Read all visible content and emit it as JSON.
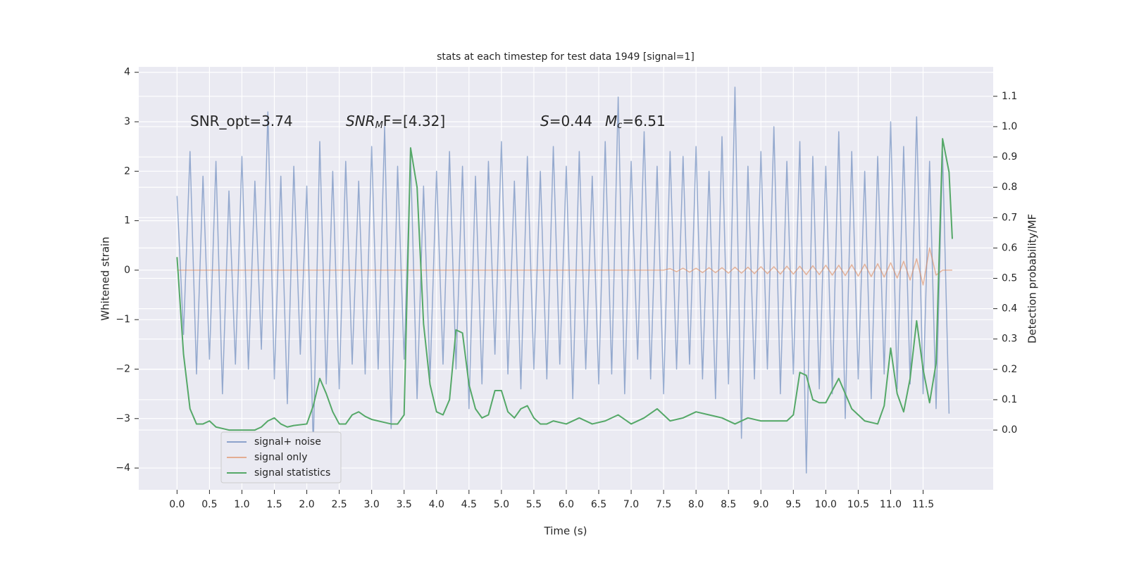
{
  "chart_data": {
    "type": "line",
    "title": "stats at each timestep for test data 1949 [signal=1]",
    "xlabel": "Time (s)",
    "ylabel": "Whitened strain",
    "y2label": "Detection probability/MF",
    "xlim": [
      -0.59,
      12.58
    ],
    "ylim": [
      -4.44,
      4.11
    ],
    "y2lim": [
      -0.197,
      1.197
    ],
    "xticks": [
      {
        "value": 0,
        "label": "0.0"
      },
      0.5,
      {
        "value": 1,
        "label": "1.0"
      },
      1.5,
      {
        "value": 2,
        "label": "2.0"
      },
      2.5,
      {
        "value": 3,
        "label": "3.0"
      },
      3.5,
      {
        "value": 4,
        "label": "4.0"
      },
      4.5,
      {
        "value": 5,
        "label": "5.0"
      },
      5.5,
      {
        "value": 6,
        "label": "6.0"
      },
      6.5,
      {
        "value": 7,
        "label": "7.0"
      },
      7.5,
      {
        "value": 8,
        "label": "8.0"
      },
      8.5,
      {
        "value": 9,
        "label": "9.0"
      },
      9.5,
      {
        "value": 10,
        "label": "10.0"
      },
      10.5,
      {
        "value": 11,
        "label": "11.0"
      },
      11.5
    ],
    "yticks": [
      {
        "value": -4,
        "label": "−4"
      },
      {
        "value": -3,
        "label": "−3"
      },
      {
        "value": -2,
        "label": "−2"
      },
      {
        "value": -1,
        "label": "−1"
      },
      0,
      1,
      2,
      3,
      4
    ],
    "y2ticks": [
      {
        "value": 0,
        "label": "0.0"
      },
      0.1,
      0.2,
      0.3,
      0.4,
      0.5,
      0.6,
      0.7,
      0.8,
      0.9,
      {
        "value": 1,
        "label": "1.0"
      },
      1.1
    ],
    "grid": true,
    "legend_loc": "lower left",
    "annotations": [
      [
        {
          "text": "SNR_opt=3.74",
          "style": "normal"
        }
      ],
      [
        {
          "text": "SNR",
          "style": "italic"
        },
        {
          "text": "M",
          "style": "sub"
        },
        {
          "text": "F=[4.32]",
          "style": "normal"
        }
      ],
      [
        {
          "text": "S",
          "style": "italic"
        },
        {
          "text": "=0.44",
          "style": "normal"
        }
      ],
      [
        {
          "text": "M",
          "style": "italic"
        },
        {
          "text": "c",
          "style": "sub"
        },
        {
          "text": "=6.51",
          "style": "normal"
        }
      ]
    ],
    "series": [
      {
        "name": "signal+ noise",
        "color": "#4c72b0",
        "axis": "y",
        "x": [
          0,
          0.1,
          0.2,
          0.3,
          0.4,
          0.5,
          0.6,
          0.7,
          0.8,
          0.9,
          1,
          1.1,
          1.2,
          1.3,
          1.4,
          1.5,
          1.6,
          1.7,
          1.8,
          1.9,
          2,
          2.1,
          2.2,
          2.3,
          2.4,
          2.5,
          2.6,
          2.7,
          2.8,
          2.9,
          3,
          3.1,
          3.2,
          3.3,
          3.4,
          3.5,
          3.6,
          3.7,
          3.8,
          3.9,
          4,
          4.1,
          4.2,
          4.3,
          4.4,
          4.5,
          4.6,
          4.7,
          4.8,
          4.9,
          5,
          5.1,
          5.2,
          5.3,
          5.4,
          5.5,
          5.6,
          5.7,
          5.8,
          5.9,
          6,
          6.1,
          6.2,
          6.3,
          6.4,
          6.5,
          6.6,
          6.7,
          6.8,
          6.9,
          7,
          7.1,
          7.2,
          7.3,
          7.4,
          7.5,
          7.6,
          7.7,
          7.8,
          7.9,
          8,
          8.1,
          8.2,
          8.3,
          8.4,
          8.5,
          8.6,
          8.7,
          8.8,
          8.9,
          9,
          9.1,
          9.2,
          9.3,
          9.4,
          9.5,
          9.6,
          9.7,
          9.8,
          9.9,
          10,
          10.1,
          10.2,
          10.3,
          10.4,
          10.5,
          10.6,
          10.7,
          10.8,
          10.9,
          11,
          11.1,
          11.2,
          11.3,
          11.4,
          11.5,
          11.6,
          11.7,
          11.8,
          11.9
        ],
        "values": [
          1.5,
          -1.3,
          2.4,
          -2.1,
          1.9,
          -1.8,
          2.2,
          -2.5,
          1.6,
          -1.9,
          2.3,
          -2.0,
          1.8,
          -1.6,
          3.2,
          -2.2,
          1.9,
          -2.7,
          2.1,
          -1.7,
          1.7,
          -3.6,
          2.6,
          -2.3,
          2.0,
          -2.4,
          2.2,
          -1.9,
          1.8,
          -2.1,
          2.5,
          -2.0,
          2.9,
          -3.2,
          2.1,
          -1.8,
          2.3,
          -2.6,
          1.7,
          -2.2,
          2.0,
          -1.9,
          2.4,
          -2.0,
          2.1,
          -2.8,
          1.9,
          -2.3,
          2.2,
          -1.7,
          2.6,
          -2.1,
          1.8,
          -2.4,
          2.3,
          -2.0,
          2.0,
          -2.2,
          2.5,
          -1.9,
          2.1,
          -2.6,
          2.4,
          -2.0,
          1.9,
          -2.3,
          2.6,
          -2.1,
          3.5,
          -2.5,
          2.2,
          -1.8,
          2.8,
          -2.2,
          2.1,
          -2.5,
          2.4,
          -2.0,
          2.3,
          -1.9,
          2.5,
          -2.2,
          2.0,
          -2.6,
          2.7,
          -2.3,
          3.7,
          -3.4,
          2.1,
          -2.2,
          2.4,
          -2.0,
          2.9,
          -2.5,
          2.2,
          -2.1,
          2.6,
          -4.1,
          2.3,
          -2.4,
          2.1,
          -2.5,
          2.8,
          -3.0,
          2.4,
          -2.2,
          2.0,
          -2.6,
          2.3,
          -2.1,
          3.0,
          -2.4,
          2.5,
          -2.3,
          3.1,
          -2.5,
          2.2,
          -2.8,
          2.4,
          -2.9
        ]
      },
      {
        "name": "signal only",
        "color": "#dd8452",
        "axis": "y",
        "x": [
          0,
          7.5,
          7.6,
          7.7,
          7.8,
          7.9,
          8,
          8.1,
          8.2,
          8.3,
          8.4,
          8.5,
          8.6,
          8.7,
          8.8,
          8.9,
          9,
          9.1,
          9.2,
          9.3,
          9.4,
          9.5,
          9.6,
          9.7,
          9.8,
          9.9,
          10,
          10.1,
          10.2,
          10.3,
          10.4,
          10.5,
          10.6,
          10.7,
          10.8,
          10.9,
          11,
          11.1,
          11.2,
          11.3,
          11.4,
          11.5,
          11.6,
          11.7,
          11.8,
          11.95
        ],
        "values": [
          0,
          0,
          0.03,
          -0.03,
          0.04,
          -0.04,
          0.04,
          -0.05,
          0.05,
          -0.05,
          0.05,
          -0.06,
          0.06,
          -0.06,
          0.06,
          -0.07,
          0.07,
          -0.07,
          0.07,
          -0.08,
          0.08,
          -0.08,
          0.08,
          -0.09,
          0.09,
          -0.09,
          0.1,
          -0.1,
          0.1,
          -0.11,
          0.11,
          -0.12,
          0.12,
          -0.13,
          0.13,
          -0.14,
          0.15,
          -0.16,
          0.18,
          -0.2,
          0.23,
          -0.3,
          0.45,
          -0.1,
          0,
          0
        ]
      },
      {
        "name": "signal statistics",
        "color": "#55a868",
        "axis": "y2",
        "x": [
          0,
          0.1,
          0.2,
          0.3,
          0.4,
          0.5,
          0.6,
          0.8,
          1.0,
          1.2,
          1.3,
          1.4,
          1.5,
          1.6,
          1.7,
          1.8,
          2.0,
          2.1,
          2.2,
          2.3,
          2.4,
          2.5,
          2.6,
          2.7,
          2.8,
          2.9,
          3.0,
          3.2,
          3.3,
          3.4,
          3.5,
          3.6,
          3.7,
          3.8,
          3.9,
          4.0,
          4.1,
          4.2,
          4.3,
          4.4,
          4.5,
          4.6,
          4.7,
          4.8,
          4.9,
          5.0,
          5.1,
          5.2,
          5.3,
          5.4,
          5.5,
          5.6,
          5.7,
          5.8,
          6.0,
          6.2,
          6.4,
          6.6,
          6.8,
          7.0,
          7.2,
          7.4,
          7.6,
          7.8,
          8.0,
          8.2,
          8.4,
          8.6,
          8.8,
          9.0,
          9.2,
          9.4,
          9.5,
          9.6,
          9.7,
          9.8,
          9.9,
          10.0,
          10.2,
          10.4,
          10.6,
          10.8,
          10.9,
          11.0,
          11.1,
          11.2,
          11.3,
          11.4,
          11.5,
          11.6,
          11.7,
          11.8,
          11.9,
          11.95
        ],
        "values": [
          0.57,
          0.25,
          0.07,
          0.02,
          0.02,
          0.03,
          0.01,
          0.0,
          0.0,
          0.0,
          0.01,
          0.03,
          0.04,
          0.02,
          0.01,
          0.015,
          0.02,
          0.08,
          0.17,
          0.12,
          0.06,
          0.02,
          0.02,
          0.05,
          0.06,
          0.045,
          0.035,
          0.025,
          0.02,
          0.02,
          0.05,
          0.93,
          0.8,
          0.35,
          0.15,
          0.06,
          0.05,
          0.1,
          0.33,
          0.32,
          0.15,
          0.07,
          0.04,
          0.05,
          0.13,
          0.13,
          0.06,
          0.04,
          0.07,
          0.08,
          0.04,
          0.02,
          0.02,
          0.03,
          0.02,
          0.04,
          0.02,
          0.03,
          0.05,
          0.02,
          0.04,
          0.07,
          0.03,
          0.04,
          0.06,
          0.05,
          0.04,
          0.02,
          0.04,
          0.03,
          0.03,
          0.03,
          0.05,
          0.19,
          0.18,
          0.1,
          0.09,
          0.09,
          0.17,
          0.07,
          0.03,
          0.02,
          0.08,
          0.27,
          0.12,
          0.06,
          0.17,
          0.36,
          0.2,
          0.09,
          0.22,
          0.96,
          0.85,
          0.63
        ]
      }
    ]
  }
}
